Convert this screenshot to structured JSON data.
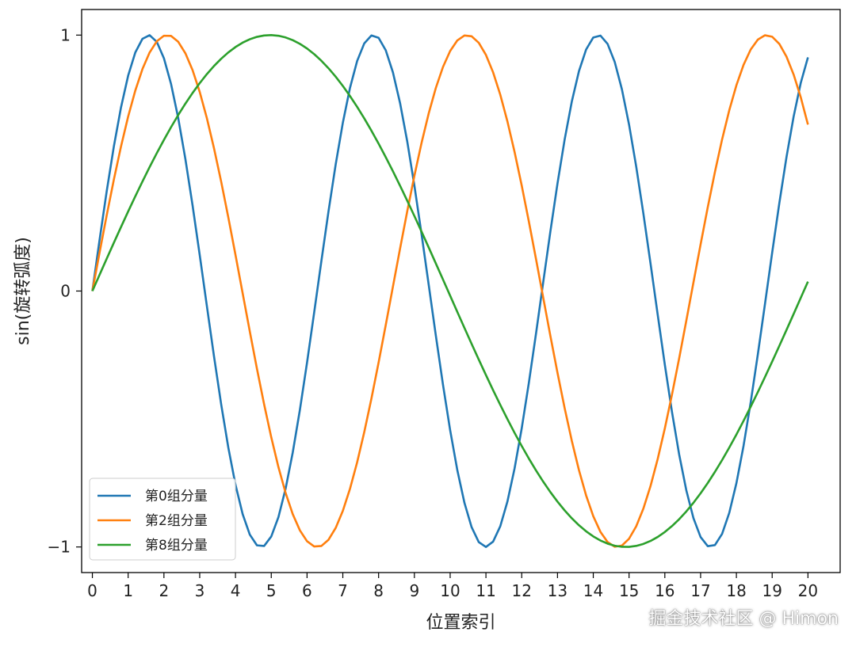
{
  "chart_data": {
    "type": "line",
    "title": "",
    "xlabel": "位置索引",
    "ylabel": "sin(旋转弧度)",
    "xlim": [
      -0.3,
      20.9
    ],
    "ylim": [
      -1.1,
      1.1
    ],
    "x_ticks": [
      0,
      1,
      2,
      3,
      4,
      5,
      6,
      7,
      8,
      9,
      10,
      11,
      12,
      13,
      14,
      15,
      16,
      17,
      18,
      19,
      20
    ],
    "y_ticks": [
      -1,
      0,
      1
    ],
    "y_tick_labels": [
      "−1",
      "0",
      "1"
    ],
    "grid": false,
    "legend_position": "lower-left",
    "x_start": 0,
    "x_end": 20,
    "x_step": 0.2,
    "series": [
      {
        "name": "第0组分量",
        "frequency": 1.0,
        "color": "#1f77b4"
      },
      {
        "name": "第2组分量",
        "frequency": 0.75,
        "color": "#ff7f0e"
      },
      {
        "name": "第8组分量",
        "frequency": 0.316,
        "color": "#2ca02c"
      }
    ]
  },
  "watermark": "掘金技术社区 @ Himon"
}
